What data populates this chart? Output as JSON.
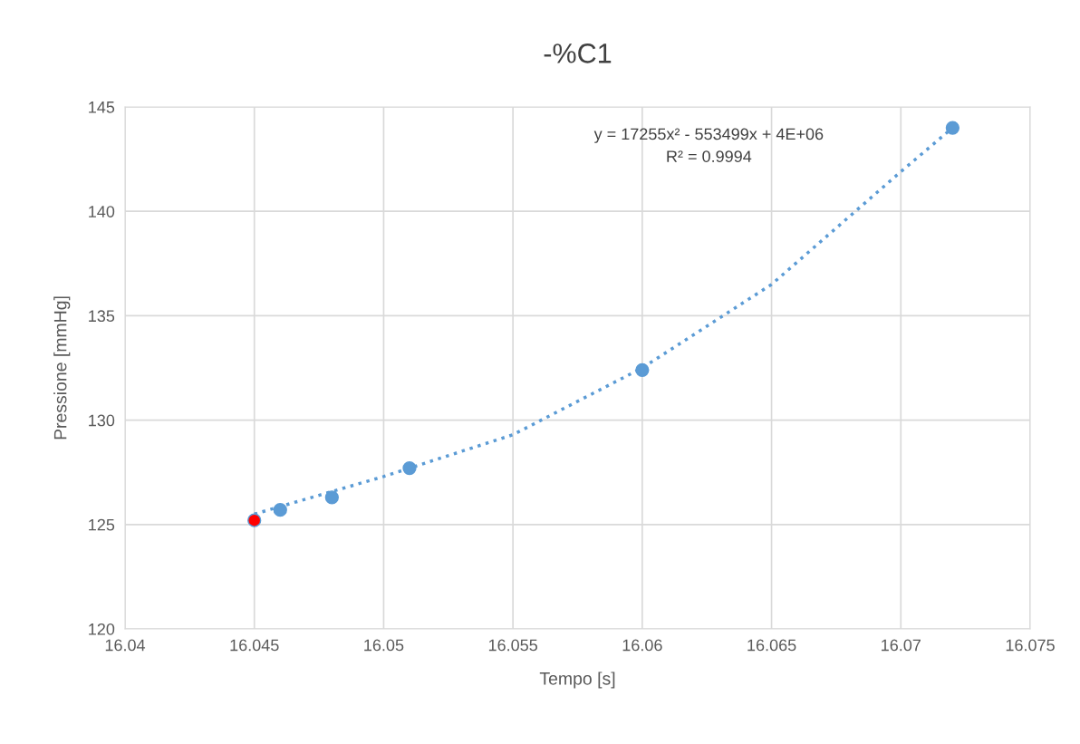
{
  "chart_data": {
    "type": "scatter",
    "title": "-%C1",
    "xlabel": "Tempo [s]",
    "ylabel": "Pressione [mmHg]",
    "xlim": [
      16.04,
      16.075
    ],
    "xticks": [
      16.04,
      16.045,
      16.05,
      16.055,
      16.06,
      16.065,
      16.07,
      16.075
    ],
    "ylim": [
      120,
      145
    ],
    "yticks": [
      120,
      125,
      130,
      135,
      140,
      145
    ],
    "grid": true,
    "legend": false,
    "marker": "circle",
    "series": [
      {
        "color": "#5b9bd5",
        "x": [
          16.045,
          16.046,
          16.048,
          16.051,
          16.06,
          16.072
        ],
        "values": [
          125.2,
          125.7,
          126.3,
          127.7,
          132.4,
          144.0
        ],
        "colors": [
          "#ff0000",
          "#5b9bd5",
          "#5b9bd5",
          "#5b9bd5",
          "#5b9bd5",
          "#5b9bd5"
        ]
      },
      {
        "type": "line",
        "color": "#5b9bd5",
        "line_style": "dotted",
        "marker": "none",
        "x": [
          16.045,
          16.0475,
          16.05,
          16.055,
          16.06,
          16.065,
          16.07,
          16.072
        ],
        "values": [
          125.5,
          126.4,
          127.3,
          129.3,
          132.5,
          136.5,
          141.9,
          144.0
        ]
      }
    ],
    "annotations": [
      "y = 17255x² - 553499x + 4E+06\nR² = 0.9994"
    ]
  }
}
